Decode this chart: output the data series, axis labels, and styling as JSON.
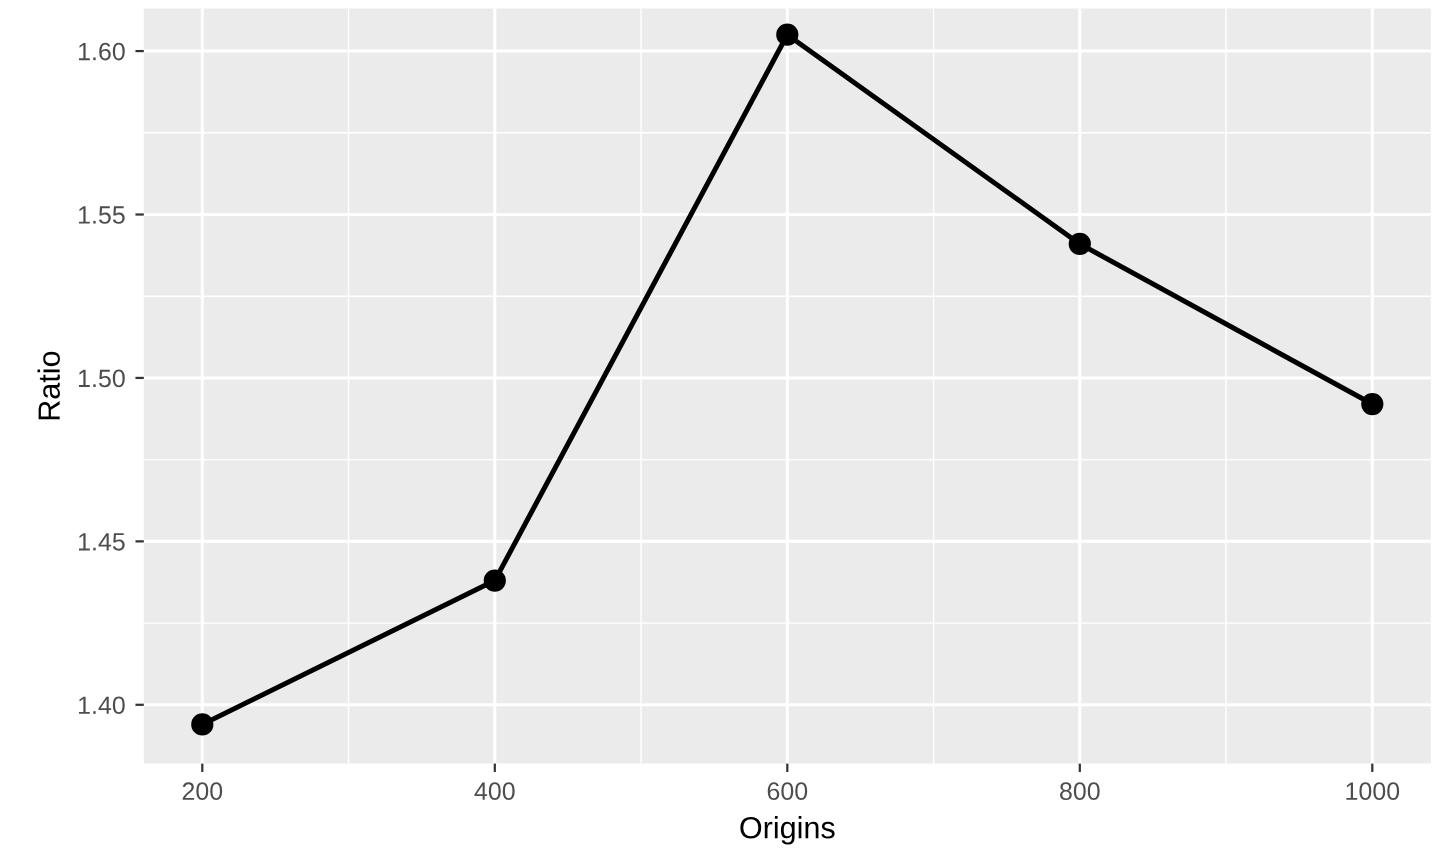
{
  "chart_data": {
    "type": "line",
    "xlabel": "Origins",
    "ylabel": "Ratio",
    "x": [
      200,
      400,
      600,
      800,
      1000
    ],
    "series": [
      {
        "color": "#000000",
        "values": [
          1.394,
          1.438,
          1.605,
          1.541,
          1.492
        ]
      }
    ],
    "xlim": [
      160,
      1040
    ],
    "ylim": [
      1.382,
      1.613
    ],
    "xticks": [
      200,
      400,
      600,
      800,
      1000
    ],
    "yticks": [
      {
        "value": 1.4,
        "label": "1.40"
      },
      {
        "value": 1.45,
        "label": "1.45"
      },
      {
        "value": 1.5,
        "label": "1.50"
      },
      {
        "value": 1.55,
        "label": "1.55"
      },
      {
        "value": 1.6,
        "label": "1.60"
      }
    ],
    "grid": true,
    "marker": "circle",
    "line_style": "solid"
  }
}
